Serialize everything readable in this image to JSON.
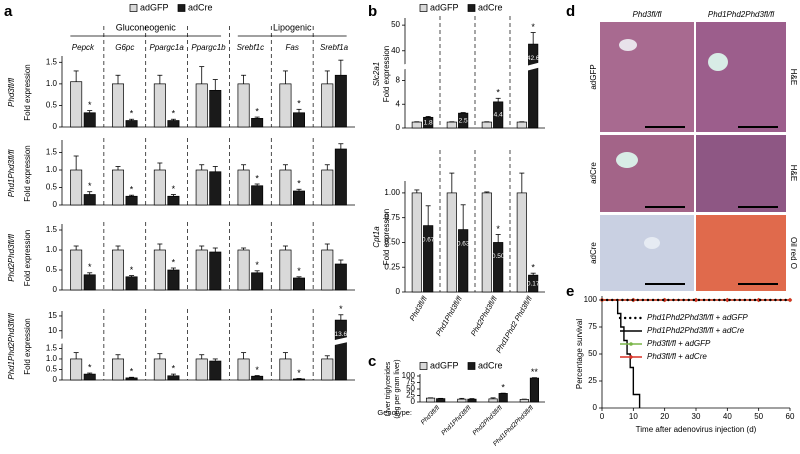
{
  "panels": [
    "a",
    "b",
    "c",
    "d",
    "e"
  ],
  "panel_d": {
    "columns": [
      "Phd3fl/fl",
      "Phd1Phd2Phd3fl/fl"
    ],
    "rows": [
      {
        "label": "adGFP",
        "stain": "H&E"
      },
      {
        "label": "adCre",
        "stain": "H&E"
      },
      {
        "label": "adCre",
        "stain": "Oil red O"
      }
    ]
  },
  "chart_data": [
    {
      "type": "bar",
      "row_label": "Phd3fl/fl",
      "ylabel": "Fold expression",
      "groups": [
        "Gluconeogenic",
        "Lipogenic"
      ],
      "categories": [
        "Pepck",
        "G6pc",
        "Ppargc1a",
        "Ppargc1b",
        "Srebf1c",
        "Fas",
        "Srebf1a"
      ],
      "series": [
        {
          "name": "adGFP",
          "color": "#d9d9d9",
          "values": [
            1.05,
            1,
            1,
            1,
            1,
            1,
            1
          ],
          "errors": [
            0.25,
            0.2,
            0.2,
            0.4,
            0.2,
            0.3,
            0.3
          ]
        },
        {
          "name": "adCre",
          "color": "#1a1a1a",
          "values": [
            0.33,
            0.15,
            0.15,
            0.85,
            0.2,
            0.33,
            1.2
          ],
          "errors": [
            0.05,
            0.03,
            0.03,
            0.25,
            0.03,
            0.08,
            0.35
          ]
        }
      ],
      "significance": [
        "*",
        "*",
        "*",
        null,
        "*",
        "*",
        null
      ],
      "ylim": [
        0,
        1.6
      ],
      "yticks": [
        0,
        0.5,
        {
          "value": 1,
          "label": "1.0"
        },
        1.5
      ]
    },
    {
      "type": "bar",
      "row_label": "Phd1Phd3fl/fl",
      "ylabel": "Fold expression",
      "series": [
        {
          "name": "adGFP",
          "color": "#d9d9d9",
          "values": [
            1,
            1,
            1,
            1,
            1,
            1,
            1
          ],
          "errors": [
            0.4,
            0.1,
            0.2,
            0.15,
            0.15,
            0.15,
            0.15
          ]
        },
        {
          "name": "adCre",
          "color": "#1a1a1a",
          "values": [
            0.3,
            0.25,
            0.25,
            0.95,
            0.55,
            0.4,
            1.6
          ],
          "errors": [
            0.08,
            0.03,
            0.05,
            0.15,
            0.05,
            0.05,
            0.15
          ]
        }
      ],
      "significance": [
        "*",
        "*",
        "*",
        null,
        "*",
        "*",
        null
      ],
      "ylim": [
        0,
        1.8
      ],
      "yticks": [
        0,
        0.5,
        {
          "value": 1,
          "label": "1.0"
        },
        1.5
      ]
    },
    {
      "type": "bar",
      "row_label": "Phd2Phd3fl/fl",
      "ylabel": "Fold expression",
      "series": [
        {
          "name": "adGFP",
          "color": "#d9d9d9",
          "values": [
            1,
            1,
            1,
            1,
            1,
            1,
            1
          ],
          "errors": [
            0.1,
            0.1,
            0.15,
            0.1,
            0.05,
            0.1,
            0.15
          ]
        },
        {
          "name": "adCre",
          "color": "#1a1a1a",
          "values": [
            0.38,
            0.33,
            0.5,
            0.95,
            0.43,
            0.3,
            0.65
          ],
          "errors": [
            0.05,
            0.03,
            0.05,
            0.1,
            0.05,
            0.03,
            0.1
          ]
        }
      ],
      "significance": [
        "*",
        "*",
        "*",
        null,
        "*",
        "*",
        null
      ],
      "ylim": [
        0,
        1.6
      ],
      "yticks": [
        0,
        0.5,
        {
          "value": 1,
          "label": "1.0"
        },
        1.5
      ]
    },
    {
      "type": "bar",
      "row_label": "Phd1Phd2Phd3fl/fl",
      "ylabel": "Fold expression",
      "series": [
        {
          "name": "adGFP",
          "color": "#d9d9d9",
          "values": [
            1,
            1,
            1,
            1,
            1,
            1,
            1
          ],
          "errors": [
            0.3,
            0.2,
            0.25,
            0.2,
            0.3,
            0.3,
            0.15
          ]
        },
        {
          "name": "adCre",
          "color": "#1a1a1a",
          "values": [
            0.28,
            0.1,
            0.2,
            0.9,
            0.18,
            0.05,
            13.6
          ],
          "errors": [
            0.05,
            0.03,
            0.08,
            0.1,
            0.03,
            0.02,
            1.8
          ],
          "value_labels": [
            null,
            null,
            null,
            null,
            null,
            null,
            "13.6"
          ]
        }
      ],
      "significance": [
        "*",
        "*",
        "*",
        null,
        "*",
        "*",
        "*"
      ],
      "ylim": [
        0,
        16
      ],
      "yticks": [
        0,
        0.5,
        {
          "value": 1,
          "label": "1.0"
        },
        1.5,
        10,
        15
      ]
    },
    {
      "type": "bar",
      "gene": "Slc2a1",
      "ylabel": "Fold expression",
      "series": [
        {
          "name": "adGFP",
          "color": "#d9d9d9",
          "values": [
            1,
            1,
            1,
            1
          ],
          "errors": [
            0.05,
            0.05,
            0.05,
            0.05
          ]
        },
        {
          "name": "adCre",
          "color": "#1a1a1a",
          "values": [
            1.8,
            2.5,
            4.4,
            42.6
          ],
          "errors": [
            0.15,
            0.1,
            0.6,
            4.5
          ],
          "value_labels": [
            "1.8",
            "2.5",
            "4.4",
            "42.6"
          ]
        }
      ],
      "significance": [
        null,
        null,
        "*",
        "*"
      ],
      "ylim": [
        0,
        52
      ],
      "yticks": [
        0,
        4,
        8,
        40,
        50
      ]
    },
    {
      "type": "bar",
      "gene": "Cpt1a",
      "ylabel": "Fold expression",
      "categories": [
        "Phd3fl/fl",
        "Phd1Phd3fl/fl",
        "Phd2Phd3fl/fl",
        "Phd1Phd2 Phd3fl/fl"
      ],
      "series": [
        {
          "name": "adGFP",
          "color": "#d9d9d9",
          "values": [
            1,
            1,
            1,
            1
          ],
          "errors": [
            0.03,
            0.2,
            0.01,
            0.2
          ]
        },
        {
          "name": "adCre",
          "color": "#1a1a1a",
          "values": [
            0.67,
            0.63,
            0.5,
            0.17
          ],
          "errors": [
            0.2,
            0.25,
            0.08,
            0.02
          ],
          "value_labels": [
            "0.67",
            "0.63",
            "0.50",
            "0.17"
          ]
        }
      ],
      "significance": [
        null,
        null,
        "*",
        "*"
      ],
      "ylim": [
        0,
        1.1
      ],
      "yticks": [
        0,
        0.25,
        {
          "value": 0.5,
          "label": "0.50"
        },
        0.75,
        {
          "value": 1,
          "label": "1.00"
        }
      ]
    },
    {
      "type": "bar",
      "ylabel": [
        "Liver triglycerides",
        "(mg per gram liver)"
      ],
      "xlabel": "Genotype:",
      "categories": [
        "Phd3fl/fl",
        "Phd1Phd3fl/fl",
        "Phd2Phd3fl/fl",
        "Phd1Phd2Phd3fl/fl"
      ],
      "series": [
        {
          "name": "adGFP",
          "color": "#d9d9d9",
          "values": [
            15,
            11,
            12,
            10
          ],
          "errors": [
            1,
            3,
            4,
            1
          ]
        },
        {
          "name": "adCre",
          "color": "#1a1a1a",
          "values": [
            13,
            11,
            33,
            92
          ],
          "errors": [
            1,
            2,
            1,
            1.5
          ]
        }
      ],
      "significance": [
        null,
        null,
        "*",
        "**"
      ],
      "ylim": [
        0,
        100
      ],
      "yticks": [
        0,
        25,
        50,
        75,
        100
      ]
    },
    {
      "type": "line",
      "xlabel": "Time after adenovirus injection (d)",
      "ylabel": "Percentage survival",
      "xlim": [
        0,
        60
      ],
      "xticks": [
        0,
        10,
        20,
        30,
        40,
        50,
        60
      ],
      "ylim": [
        0,
        100
      ],
      "yticks": [
        0,
        25,
        50,
        75,
        100
      ],
      "series": [
        {
          "name": "Phd1Phd2Phd3fl/fl + adGFP",
          "color": "#000000",
          "style": "dotted",
          "x": [
            0,
            60
          ],
          "values": [
            100,
            100
          ]
        },
        {
          "name": "Phd1Phd2Phd3fl/fl + adCre",
          "color": "#000000",
          "style": "solid",
          "x": [
            0,
            5,
            5,
            6,
            6,
            7,
            7,
            8,
            8,
            9,
            9,
            10,
            10,
            12,
            12
          ],
          "values": [
            100,
            100,
            87.5,
            87.5,
            75,
            75,
            62.5,
            62.5,
            50,
            50,
            37.5,
            37.5,
            12.5,
            12.5,
            0
          ]
        },
        {
          "name": "Phd3fl/fl + adGFP",
          "color": "#7ab648",
          "style": "solid",
          "marker": "circle",
          "x": [
            0,
            10,
            20,
            30,
            40,
            50,
            60
          ],
          "values": [
            100,
            100,
            100,
            100,
            100,
            100,
            100
          ]
        },
        {
          "name": "Phd3fl/fl + adCre",
          "color": "#d93025",
          "style": "solid",
          "marker": "diamond",
          "x": [
            0,
            10,
            20,
            30,
            40,
            50,
            60
          ],
          "values": [
            100,
            100,
            100,
            100,
            100,
            100,
            100
          ]
        }
      ]
    }
  ]
}
